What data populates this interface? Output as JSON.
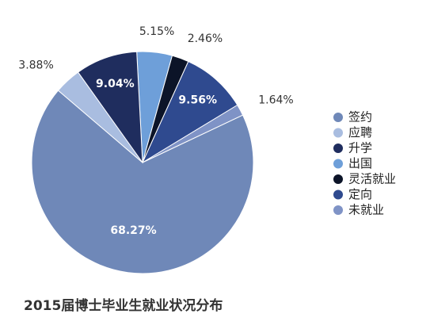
{
  "chart_data": {
    "type": "pie",
    "title": "2015届博士毕业生就业状况分布",
    "categories": [
      "出国",
      "灵活就业",
      "定向",
      "未就业",
      "签约",
      "应聘",
      "升学"
    ],
    "values": [
      5.15,
      2.46,
      9.56,
      1.64,
      68.27,
      3.88,
      9.04
    ],
    "value_labels": [
      "5.15%",
      "2.46%",
      "9.56%",
      "1.64%",
      "68.27%",
      "3.88%",
      "9.04%"
    ],
    "colors": [
      "#6e9fd9",
      "#0c1428",
      "#2f4a8f",
      "#7f93c6",
      "#6f88b8",
      "#a9bde0",
      "#1f2d5e"
    ],
    "legend_order": [
      4,
      5,
      6,
      0,
      1,
      2,
      3
    ]
  }
}
